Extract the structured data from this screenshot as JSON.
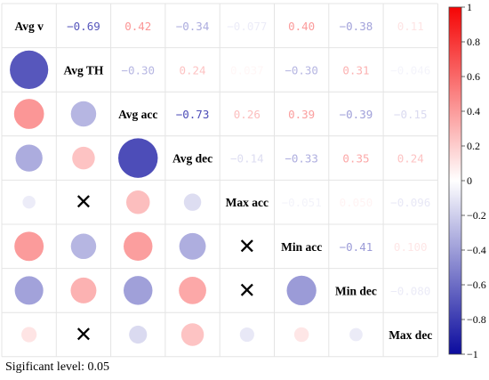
{
  "chart_data": {
    "type": "heatmap",
    "subtype": "correlation-matrix",
    "lower_triangle": "circle",
    "upper_triangle": "number",
    "variables": [
      "Avg v",
      "Avg TH",
      "Avg acc",
      "Avg dec",
      "Max acc",
      "Min acc",
      "Min dec",
      "Max dec"
    ],
    "coefficient_labels": [
      [
        null,
        "−0.69",
        "0.42",
        "−0.34",
        "−0.077",
        "0.40",
        "−0.38",
        "0.11"
      ],
      [
        "−0.69",
        null,
        "−0.30",
        "0.24",
        "0.037",
        "−0.30",
        "0.31",
        "−0.046"
      ],
      [
        "0.42",
        "−0.30",
        null,
        "−0.73",
        "0.26",
        "0.39",
        "−0.39",
        "−0.15"
      ],
      [
        "−0.34",
        "0.24",
        "−0.73",
        null,
        "−0.14",
        "−0.33",
        "0.35",
        "0.24"
      ],
      [
        "−0.077",
        "0.037",
        "0.26",
        "−0.14",
        null,
        "−0.051",
        "0.050",
        "−0.096"
      ],
      [
        "0.40",
        "−0.30",
        "0.39",
        "−0.33",
        "−0.051",
        null,
        "−0.41",
        "0.100"
      ],
      [
        "−0.38",
        "0.31",
        "−0.39",
        "0.35",
        "0.050",
        "−0.41",
        null,
        "−0.080"
      ],
      [
        "0.11",
        "−0.046",
        "−0.15",
        "0.24",
        "−0.096",
        "0.100",
        "−0.080",
        null
      ]
    ],
    "matrix": [
      [
        1,
        -0.69,
        0.42,
        -0.34,
        -0.077,
        0.4,
        -0.38,
        0.11
      ],
      [
        -0.69,
        1,
        -0.3,
        0.24,
        0.037,
        -0.3,
        0.31,
        -0.046
      ],
      [
        0.42,
        -0.3,
        1,
        -0.73,
        0.26,
        0.39,
        -0.39,
        -0.15
      ],
      [
        -0.34,
        0.24,
        -0.73,
        1,
        -0.14,
        -0.33,
        0.35,
        0.24
      ],
      [
        -0.077,
        0.037,
        0.26,
        -0.14,
        1,
        -0.051,
        0.05,
        -0.096
      ],
      [
        0.4,
        -0.3,
        0.39,
        -0.33,
        -0.051,
        1,
        -0.41,
        0.1
      ],
      [
        -0.38,
        0.31,
        -0.39,
        0.35,
        0.05,
        -0.41,
        1,
        -0.08
      ],
      [
        0.11,
        -0.046,
        -0.15,
        0.24,
        -0.096,
        0.1,
        -0.08,
        1
      ]
    ],
    "not_significant_mark": "✕",
    "not_significant_cells": [
      [
        4,
        1
      ],
      [
        5,
        4
      ],
      [
        6,
        4
      ],
      [
        7,
        1
      ]
    ],
    "colorbar": {
      "range": [
        -1,
        1
      ],
      "ticks": [
        "1",
        "0.8",
        "0.6",
        "0.4",
        "0.2",
        "0",
        "−0.2",
        "−0.4",
        "−0.6",
        "−0.8",
        "−1"
      ]
    },
    "colors": {
      "negative": "#0b0b9e",
      "zero": "#ffffff",
      "positive": "#f50505"
    },
    "grid": true,
    "legend": "right"
  },
  "footnote": "Sigificant level: 0.05"
}
